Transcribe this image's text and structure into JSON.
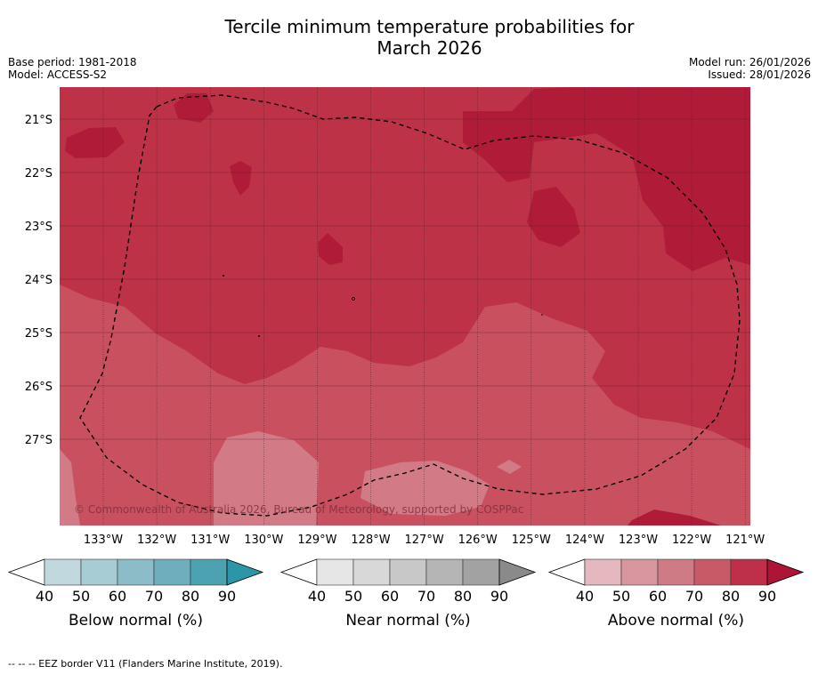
{
  "title_line1": "Tercile minimum temperature probabilities for",
  "title_line2": "March 2026",
  "meta_left": [
    "Base period: 1981-2018",
    "Model: ACCESS-S2"
  ],
  "meta_right": [
    "Model run: 26/01/2026",
    "Issued: 28/01/2026"
  ],
  "map": {
    "lon_labels": [
      "133°W",
      "132°W",
      "131°W",
      "130°W",
      "129°W",
      "128°W",
      "127°W",
      "126°W",
      "125°W",
      "124°W",
      "123°W",
      "122°W",
      "121°W"
    ],
    "lat_labels": [
      "21°S",
      "22°S",
      "23°S",
      "24°S",
      "25°S",
      "26°S",
      "27°S"
    ],
    "copyright": "© Commonwealth of Australia 2026, Bureau of Meteorology, supported by COSPPac",
    "colors": {
      "above_70": "#c9505f",
      "above_80": "#bd3247",
      "above_90": "#b01c38",
      "above_60": "#d27a85"
    }
  },
  "colorbars": [
    {
      "label": "Below normal (%)",
      "ticks": [
        "40",
        "50",
        "60",
        "70",
        "80",
        "90"
      ],
      "colors": [
        "#c0d8de",
        "#a7ccd4",
        "#8cbcc7",
        "#6fafbd",
        "#4da2b2",
        "#2b96a8"
      ]
    },
    {
      "label": "Near normal (%)",
      "ticks": [
        "40",
        "50",
        "60",
        "70",
        "80",
        "90"
      ],
      "colors": [
        "#e6e6e6",
        "#d8d8d8",
        "#c8c8c8",
        "#b5b5b5",
        "#a2a2a2",
        "#8a8a8a"
      ]
    },
    {
      "label": "Above normal (%)",
      "ticks": [
        "40",
        "50",
        "60",
        "70",
        "80",
        "90"
      ],
      "colors": [
        "#e5b8bf",
        "#d8969f",
        "#cf7b86",
        "#c85a68",
        "#be3049",
        "#ad1435"
      ]
    }
  ],
  "footer": "--  --  -- EEZ border V11 (Flanders Marine Institute, 2019)."
}
